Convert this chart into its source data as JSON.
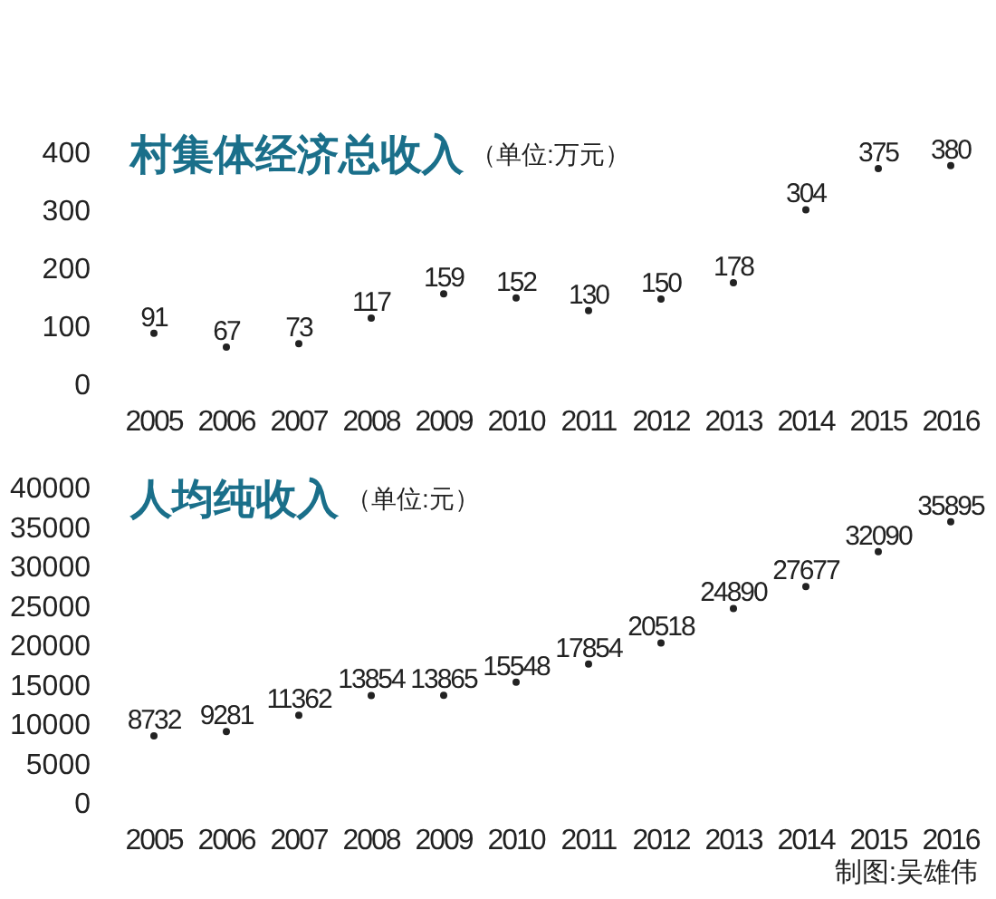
{
  "chart_data": [
    {
      "type": "scatter",
      "title": "村集体经济总收入",
      "subtitle": "（单位:万元）",
      "categories": [
        "2005",
        "2006",
        "2007",
        "2008",
        "2009",
        "2010",
        "2011",
        "2012",
        "2013",
        "2014",
        "2015",
        "2016"
      ],
      "values": [
        91,
        67,
        73,
        117,
        159,
        152,
        130,
        150,
        178,
        304,
        375,
        380
      ],
      "ylim": [
        0,
        400
      ],
      "yticks": [
        0,
        100,
        200,
        300,
        400
      ],
      "grid": false,
      "marker": "circle",
      "data_labels": true
    },
    {
      "type": "scatter",
      "title": "人均纯收入",
      "subtitle": "（单位:元）",
      "categories": [
        "2005",
        "2006",
        "2007",
        "2008",
        "2009",
        "2010",
        "2011",
        "2012",
        "2013",
        "2014",
        "2015",
        "2016"
      ],
      "values": [
        8732,
        9281,
        11362,
        13854,
        13865,
        15548,
        17854,
        20518,
        24890,
        27677,
        32090,
        35895
      ],
      "ylim": [
        0,
        40000
      ],
      "yticks": [
        0,
        5000,
        10000,
        15000,
        20000,
        25000,
        30000,
        35000,
        40000
      ],
      "grid": false,
      "marker": "circle",
      "data_labels": true,
      "annotations": [
        "制图:吴雄伟"
      ]
    }
  ]
}
